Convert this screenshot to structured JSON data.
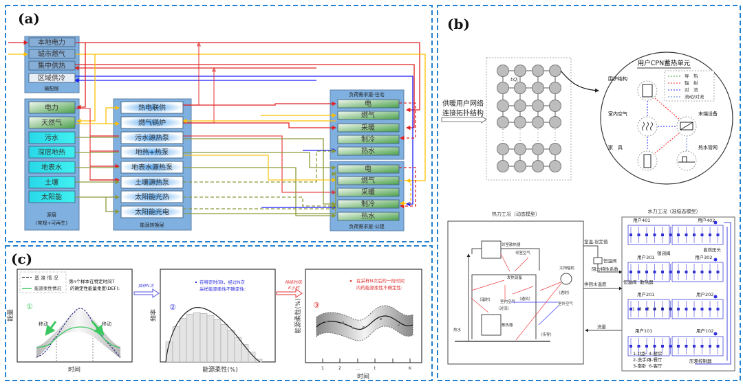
{
  "panel_a": {
    "label": "(a)",
    "transmission": {
      "items": [
        "本地电力",
        "城市燃气",
        "集中供热",
        "区域供冷"
      ],
      "title": "输配层"
    },
    "source": {
      "items": [
        "电力",
        "天然气",
        "污水",
        "深层地热",
        "地表水",
        "土壤",
        "太阳能"
      ],
      "title": "源层",
      "subtitle": "(常规+可再生)"
    },
    "conversion": {
      "items": [
        "热电联供",
        "燃气锅炉",
        "污水源热泵",
        "地热+热泵",
        "地表水源热泵",
        "土壤源热泵",
        "太阳能光热",
        "太阳能光电"
      ],
      "title": "能源转换层"
    },
    "load_residential": {
      "title": "负荷需求层-住宅",
      "items": [
        "电",
        "燃气",
        "采暖",
        "制冷",
        "热水"
      ]
    },
    "load_public": {
      "title": "负荷需求层-公建",
      "items": [
        "电",
        "燃气",
        "采暖",
        "制冷",
        "热水"
      ]
    },
    "colors": {
      "electric": "#e02020",
      "gas": "#ffc000",
      "cold": "#1a1aff",
      "renewable": "#8a9a3a"
    }
  },
  "panel_b": {
    "label": "(b)",
    "network_caption": [
      "供暖用户网络",
      "连接拓扑结构"
    ],
    "edge_label": "tᵢQⱼ",
    "cpn": {
      "title": "用户CPN蓄热单元",
      "legend": [
        "导　热",
        "辐　射",
        "对　流",
        "流动/对流"
      ],
      "legend_colors": [
        "#3a9a3a",
        "#ff2020",
        "#2020ff",
        "#4a7ae0"
      ],
      "nodes": [
        "围护结构",
        "室内空气",
        "末端设备",
        "家　具",
        "热水管网"
      ]
    },
    "thermal": {
      "title": "热力工况（动态模型）",
      "labels": [
        "邻室散热器",
        "邻室空气",
        "发热设备",
        "太阳辐射",
        "（透射）",
        "（辐射）",
        "室内空气",
        "（通风）",
        "室外空气",
        "（对流）",
        "散热器",
        "热水",
        "（传导）"
      ]
    },
    "links": [
      "室温,设定值",
      "恒温阀",
      "阻力特性系数",
      "供回水温度",
      "流量"
    ],
    "hydraulic": {
      "title": "水力工况（准稳态模型）",
      "users": [
        "用户401",
        "用户402",
        "用户301",
        "用户302",
        "用户201",
        "用户202",
        "用户101",
        "用户102"
      ],
      "labels": [
        "锁闭阀",
        "自然压头",
        "恒温阀",
        "散热器",
        "压差控制器"
      ],
      "room_numbers": [
        "1",
        "2",
        "3",
        "4",
        "5",
        "6"
      ],
      "room_legend": [
        "1-北卧",
        "4-厨房",
        "2-洗手间",
        "5-餐厅",
        "3-南卧",
        "6-客厅"
      ]
    }
  },
  "panel_c": {
    "label": "(c)",
    "step1": {
      "legend": [
        "基 准 情 况",
        "能源柔性情况"
      ],
      "note": [
        "第n个样本在特定时间T",
        "的确定性能量柔度(DEF):"
      ],
      "number": "①",
      "move": "移动",
      "ylabel": "能量",
      "xlabel": "时间"
    },
    "arrow1": "抽样N次",
    "step2": {
      "note": [
        "在特定时间t，经过N次",
        "采样能源柔性不确定性:"
      ],
      "number": "②",
      "ylabel": "频率",
      "xlabel": "能源柔性(%)"
    },
    "arrow2": [
      "持续时间:",
      "K小时"
    ],
    "step3": {
      "note": [
        "在采样N次后的一段时间",
        "内的能源柔性不确定性:"
      ],
      "number": "③",
      "ylabel": "能源柔性(%)",
      "xlabel": "时间",
      "ticks": [
        "1",
        "2",
        "…",
        "t",
        "K"
      ]
    }
  }
}
